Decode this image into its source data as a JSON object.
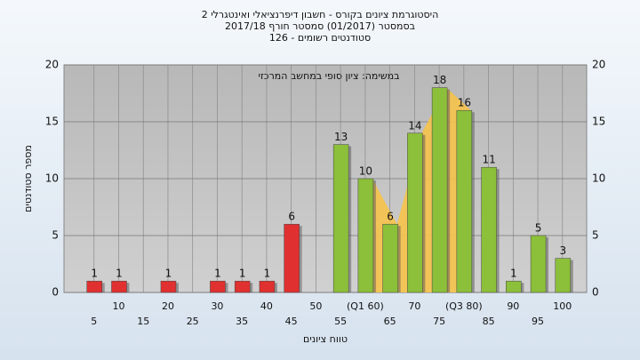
{
  "chart_data": {
    "type": "bar",
    "title": "היסטוגרמת ציונים בקורס - חשבון דיפרנציאלי ואינטגרלי 2",
    "subtitle": "בסמסטר  (01/2017)  סמסטר חורף 2017/18",
    "subtitle2": "סטודנטים רשומים - 126",
    "annotation": "במשימה: ציון סופי במחשב המרכזי",
    "y_label": "מספר סטודנטים",
    "x_label": "טווח ציונים",
    "categories": [
      "5",
      "10",
      "15",
      "20",
      "25",
      "30",
      "35",
      "40",
      "45",
      "50",
      "55",
      "(Q1 60)",
      "65",
      "70",
      "75",
      "(Q3 80)",
      "85",
      "90",
      "95",
      "100"
    ],
    "values": [
      1,
      1,
      0,
      1,
      0,
      1,
      1,
      1,
      6,
      0,
      13,
      10,
      6,
      14,
      18,
      16,
      11,
      1,
      5,
      3
    ],
    "colors": [
      "#e03030",
      "#e03030",
      "#e03030",
      "#e03030",
      "#e03030",
      "#e03030",
      "#e03030",
      "#e03030",
      "#e03030",
      "#e03030",
      "#8cbf3a",
      "#8cbf3a",
      "#8cbf3a",
      "#8cbf3a",
      "#8cbf3a",
      "#8cbf3a",
      "#8cbf3a",
      "#8cbf3a",
      "#8cbf3a",
      "#8cbf3a"
    ],
    "ylim": [
      0,
      20
    ],
    "yticks": [
      0,
      5,
      10,
      15,
      20
    ],
    "grid": true
  }
}
